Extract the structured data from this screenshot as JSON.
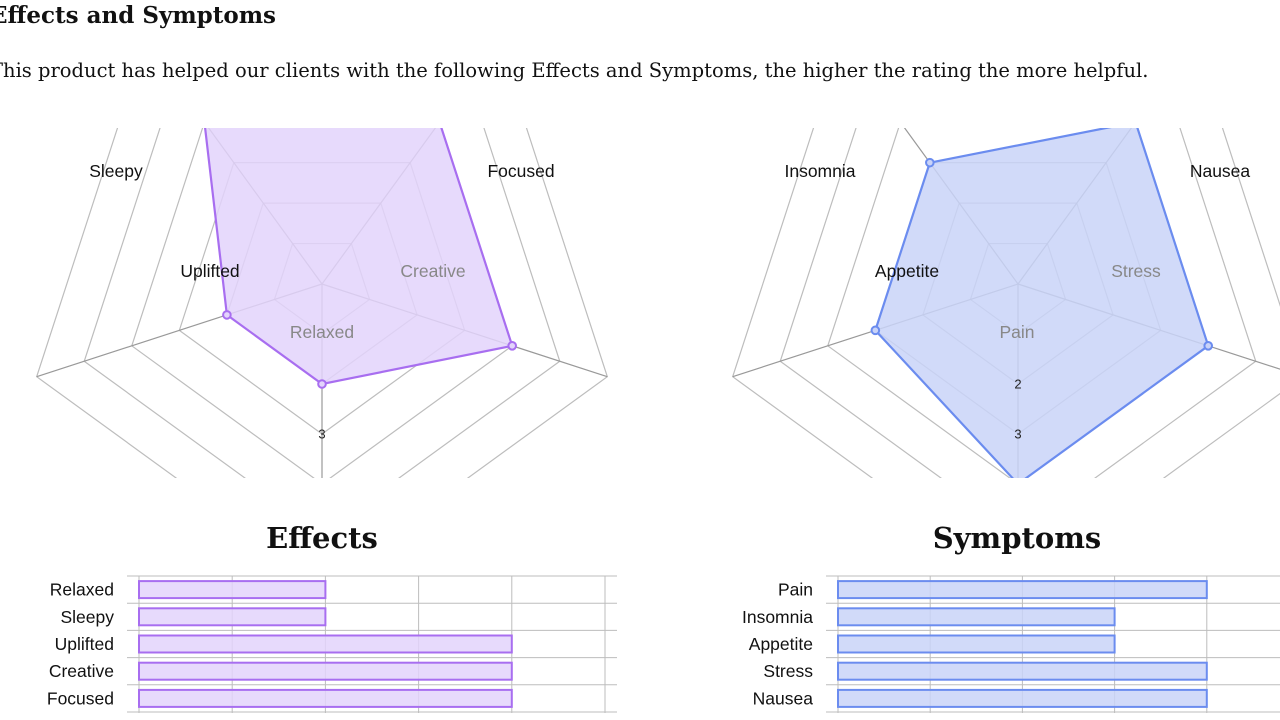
{
  "page": {
    "heading": "Effects and Symptoms",
    "intro": "This product has helped our clients with the following Effects and Symptoms, the higher the rating the more helpful."
  },
  "colors": {
    "effects_stroke": "#a86ef0",
    "effects_fill": "#e3d4fb",
    "symptoms_stroke": "#6b8cef",
    "symptoms_fill": "#c9d3f8",
    "grid": "#bdbdbd",
    "axis": "#999999"
  },
  "chart_data": [
    {
      "type": "radar",
      "name": "effects-radar",
      "categories": [
        "Relaxed",
        "Sleepy",
        "Uplifted",
        "Creative",
        "Focused"
      ],
      "values": [
        2,
        2,
        4,
        4,
        4
      ],
      "visible_ticks": [
        "3"
      ],
      "ylim": [
        0,
        5
      ]
    },
    {
      "type": "radar",
      "name": "symptoms-radar",
      "categories": [
        "Pain",
        "Insomnia",
        "Appetite",
        "Stress",
        "Nausea"
      ],
      "values": [
        4,
        3,
        3,
        4,
        4
      ],
      "visible_ticks": [
        "2",
        "3"
      ],
      "ylim": [
        0,
        5
      ]
    },
    {
      "type": "bar",
      "name": "effects-bar",
      "title": "Effects",
      "categories": [
        "Relaxed",
        "Sleepy",
        "Uplifted",
        "Creative",
        "Focused"
      ],
      "values": [
        2,
        2,
        4,
        4,
        4
      ],
      "xlim": [
        0,
        5
      ]
    },
    {
      "type": "bar",
      "name": "symptoms-bar",
      "title": "Symptoms",
      "categories": [
        "Pain",
        "Insomnia",
        "Appetite",
        "Stress",
        "Nausea"
      ],
      "values": [
        4,
        3,
        3,
        4,
        4
      ],
      "xlim": [
        0,
        5
      ]
    }
  ]
}
